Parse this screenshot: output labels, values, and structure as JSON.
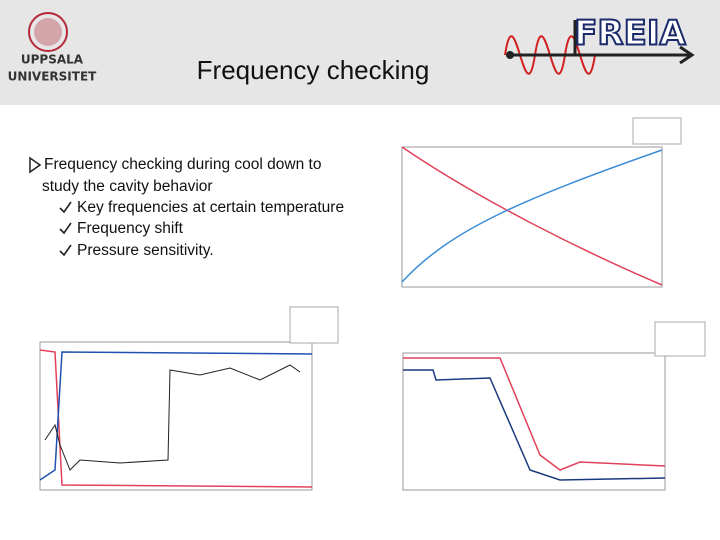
{
  "header": {
    "title": "Frequency checking",
    "logo_left": [
      "UPPSALA",
      "UNIVERSITET"
    ],
    "logo_right": "FREIA"
  },
  "bullets": [
    {
      "lines": [
        "Frequency checking during cool down to",
        "study the cavity behavior"
      ],
      "sub": [
        "Key frequencies at certain temperature",
        "Frequency shift",
        "Pressure sensitivity."
      ]
    }
  ]
}
